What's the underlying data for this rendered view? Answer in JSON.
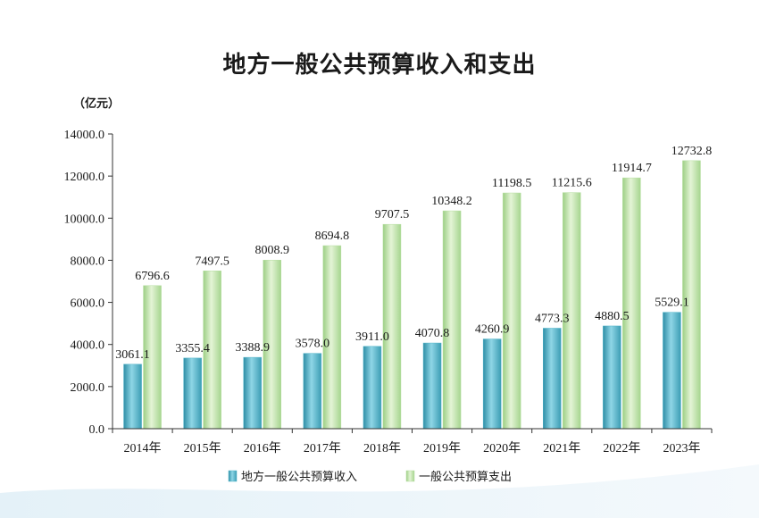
{
  "chart_data": {
    "type": "bar",
    "title": "地方一般公共预算收入和支出",
    "unit_label": "（亿元）",
    "categories": [
      "2014年",
      "2015年",
      "2016年",
      "2017年",
      "2018年",
      "2019年",
      "2020年",
      "2021年",
      "2022年",
      "2023年"
    ],
    "series": [
      {
        "name": "地方一般公共预算收入",
        "color": "#4fb3c8",
        "values": [
          3061.1,
          3355.4,
          3388.9,
          3578.0,
          3911.0,
          4070.8,
          4260.9,
          4773.3,
          4880.5,
          5529.1
        ],
        "labels": [
          "3061.1",
          "3355.4",
          "3388.9",
          "3578.0",
          "3911.0",
          "4070.8",
          "4260.9",
          "4773.3",
          "4880.5",
          "5529.1"
        ]
      },
      {
        "name": "一般公共预算支出",
        "color": "#b5dea0",
        "values": [
          6796.6,
          7497.5,
          8008.9,
          8694.8,
          9707.5,
          10348.2,
          11198.5,
          11215.6,
          11914.7,
          12732.8
        ],
        "labels": [
          "6796.6",
          "7497.5",
          "8008.9",
          "8694.8",
          "9707.5",
          "10348.2",
          "11198.5",
          "11215.6",
          "11914.7",
          "12732.8"
        ]
      }
    ],
    "ylim": [
      0,
      14000
    ],
    "yticks": [
      0,
      2000,
      4000,
      6000,
      8000,
      10000,
      12000,
      14000
    ],
    "ytick_labels": [
      "0.0",
      "2000.0",
      "4000.0",
      "6000.0",
      "8000.0",
      "10000.0",
      "12000.0",
      "14000.0"
    ],
    "legend_position": "bottom",
    "grid": false
  }
}
